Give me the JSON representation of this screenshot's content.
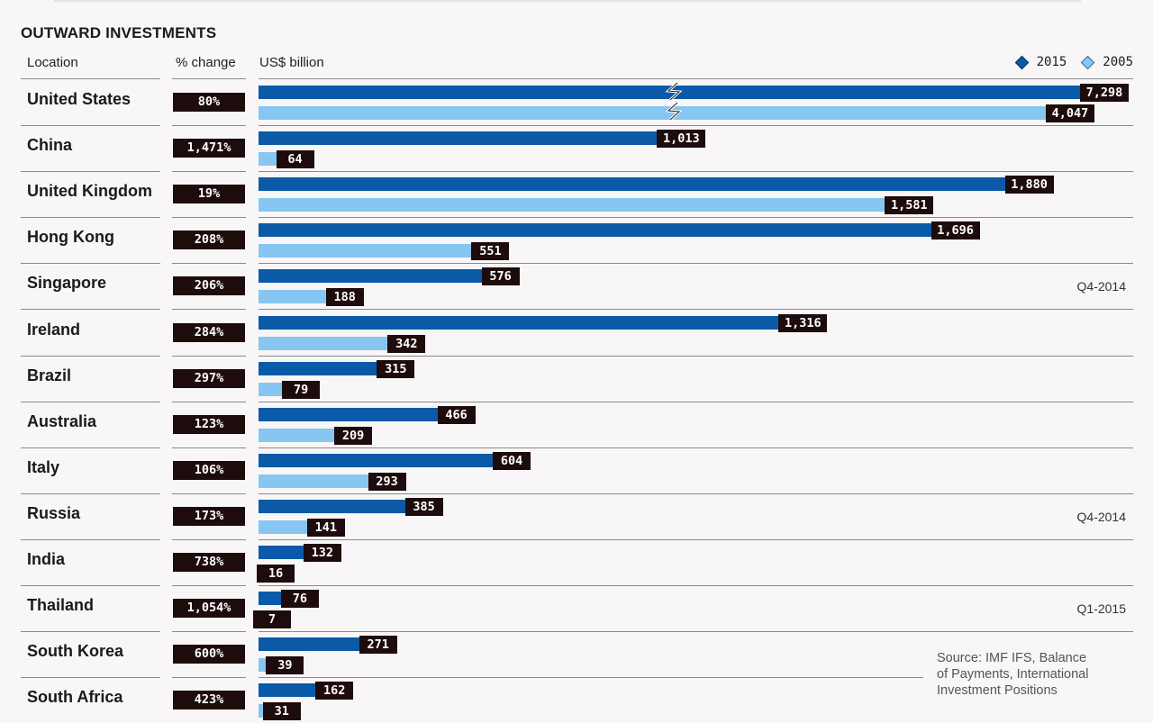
{
  "header": {
    "title": "OUTWARD INVESTMENTS"
  },
  "columns": {
    "location": "Location",
    "change": "% change",
    "value": "US$ billion"
  },
  "source": [
    "Source: IMF IFS, Balance",
    "of Payments, International",
    "Investment Positions"
  ],
  "colors": {
    "series_2015": "#0b5aa8",
    "series_2005": "#86c6f0",
    "label_bg": "#1e0c0c"
  },
  "chart_data": {
    "type": "bar",
    "orientation": "horizontal",
    "title": "OUTWARD INVESTMENTS",
    "unit": "US$ billion",
    "legend": {
      "position": "top-right",
      "entries": [
        "2015",
        "2005"
      ]
    },
    "axis_break": {
      "categories": [
        "United States"
      ]
    },
    "categories": [
      "United States",
      "China",
      "United Kingdom",
      "Hong Kong",
      "Singapore",
      "Ireland",
      "Brazil",
      "Australia",
      "Italy",
      "Russia",
      "India",
      "Thailand",
      "South Korea",
      "South Africa"
    ],
    "pct_change": [
      "80%",
      "1,471%",
      "19%",
      "208%",
      "206%",
      "284%",
      "297%",
      "123%",
      "106%",
      "173%",
      "738%",
      "1,054%",
      "600%",
      "423%"
    ],
    "notes": [
      "",
      "",
      "",
      "",
      "Q4-2014",
      "",
      "",
      "",
      "",
      "Q4-2014",
      "",
      "Q1-2015",
      "",
      ""
    ],
    "series": [
      {
        "name": "2015",
        "values": [
          7298,
          1013,
          1880,
          1696,
          576,
          1316,
          315,
          466,
          604,
          385,
          132,
          76,
          271,
          162
        ],
        "labels": [
          "7,298",
          "1,013",
          "1,880",
          "1,696",
          "576",
          "1,316",
          "315",
          "466",
          "604",
          "385",
          "132",
          "76",
          "271",
          "162"
        ]
      },
      {
        "name": "2005",
        "values": [
          4047,
          64,
          1581,
          551,
          188,
          342,
          79,
          209,
          293,
          141,
          16,
          7,
          39,
          31
        ],
        "labels": [
          "4,047",
          "64",
          "1,581",
          "551",
          "188",
          "342",
          "79",
          "209",
          "293",
          "141",
          "16",
          "7",
          "39",
          "31"
        ]
      }
    ]
  }
}
